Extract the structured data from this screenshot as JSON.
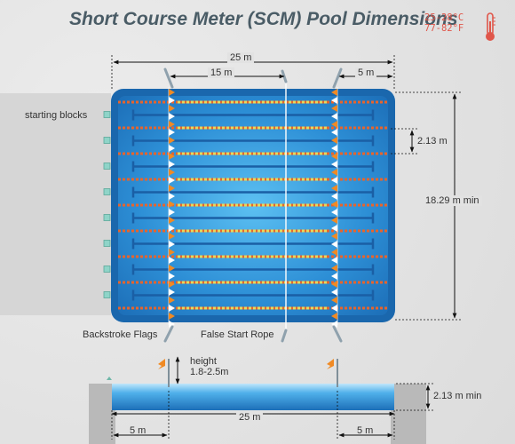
{
  "title": "Short Course Meter (SCM) Pool Dimensions",
  "temperature": {
    "celsius": "25-28°C",
    "fahrenheit": "77-82°F"
  },
  "dimensions": {
    "length": "25 m",
    "backstroke_to_false_start": "15 m",
    "backstroke_from_end": "5 m",
    "lane_width": "2.13 m",
    "width": "18.29 m min",
    "depth": "2.13 m min",
    "flag_height_label": "height",
    "flag_height_value": "1.8-2.5m",
    "side_length": "25 m",
    "side_left": "5 m",
    "side_right": "5 m"
  },
  "labels": {
    "starting_blocks": "starting blocks",
    "backstroke_flags": "Backstroke Flags",
    "false_start_rope": "False Start Rope"
  },
  "lanes": 8,
  "colors": {
    "pool_dark": "#1d6fb8",
    "pool_light": "#3fa7e8",
    "lane_rope_orange": "#e8642c",
    "lane_rope_yellow": "#e8d85a",
    "flag_orange": "#f08a24",
    "temperature": "#e0564a"
  }
}
